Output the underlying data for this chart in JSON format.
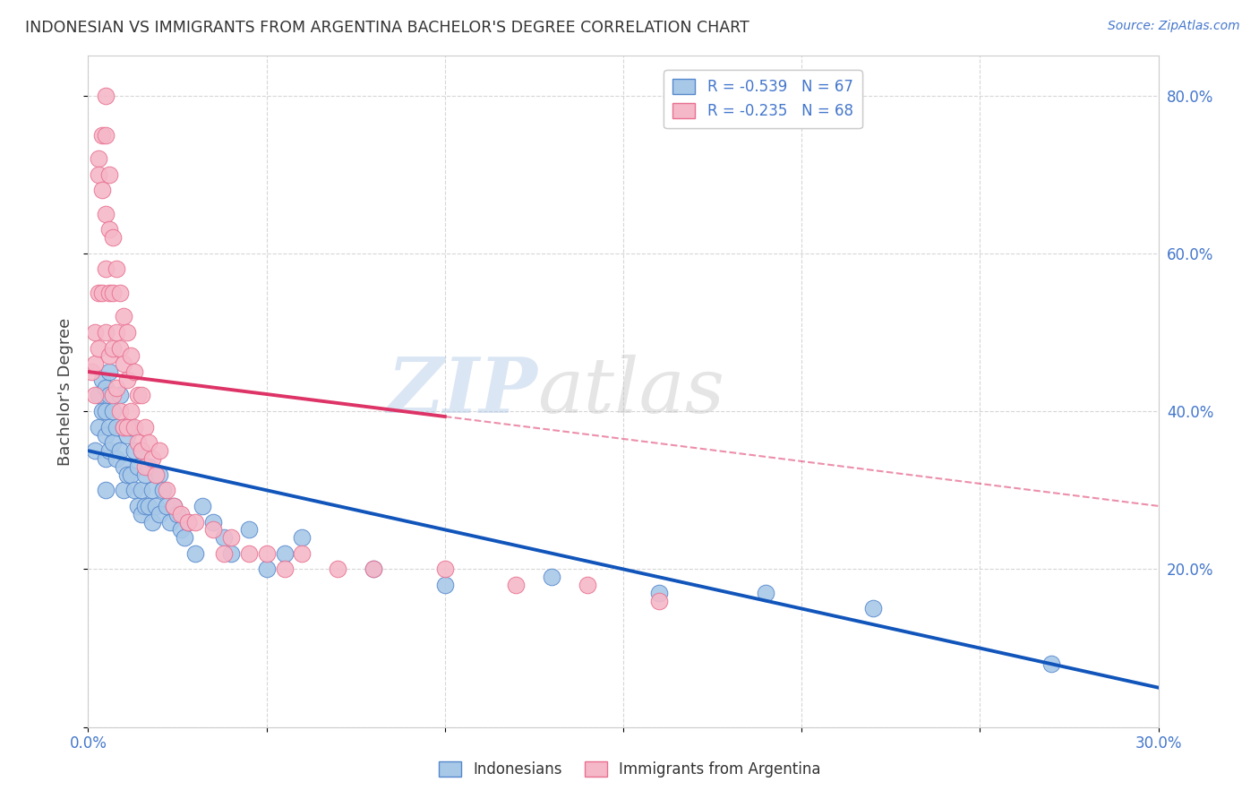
{
  "title": "INDONESIAN VS IMMIGRANTS FROM ARGENTINA BACHELOR'S DEGREE CORRELATION CHART",
  "source": "Source: ZipAtlas.com",
  "ylabel": "Bachelor's Degree",
  "watermark_zip": "ZIP",
  "watermark_atlas": "atlas",
  "xlim": [
    0.0,
    0.3
  ],
  "ylim": [
    0.0,
    0.85
  ],
  "legend_blue_label": "R = -0.539   N = 67",
  "legend_pink_label": "R = -0.235   N = 68",
  "legend_bottom_blue": "Indonesians",
  "legend_bottom_pink": "Immigrants from Argentina",
  "blue_fill": "#a8c8e8",
  "pink_fill": "#f5b8c8",
  "blue_edge": "#5588cc",
  "pink_edge": "#e87090",
  "blue_line": "#1155bb",
  "pink_line": "#dd3366",
  "grid_color": "#cccccc",
  "background_color": "#ffffff",
  "indonesians_x": [
    0.002,
    0.003,
    0.003,
    0.004,
    0.004,
    0.005,
    0.005,
    0.005,
    0.005,
    0.005,
    0.006,
    0.006,
    0.006,
    0.006,
    0.007,
    0.007,
    0.008,
    0.008,
    0.009,
    0.009,
    0.01,
    0.01,
    0.01,
    0.011,
    0.011,
    0.012,
    0.012,
    0.013,
    0.013,
    0.014,
    0.014,
    0.015,
    0.015,
    0.015,
    0.016,
    0.016,
    0.017,
    0.017,
    0.018,
    0.018,
    0.019,
    0.02,
    0.02,
    0.021,
    0.022,
    0.023,
    0.024,
    0.025,
    0.026,
    0.027,
    0.028,
    0.03,
    0.032,
    0.035,
    0.038,
    0.04,
    0.045,
    0.05,
    0.055,
    0.06,
    0.08,
    0.1,
    0.13,
    0.16,
    0.19,
    0.22,
    0.27
  ],
  "indonesians_y": [
    0.35,
    0.38,
    0.42,
    0.4,
    0.44,
    0.43,
    0.4,
    0.37,
    0.34,
    0.3,
    0.45,
    0.42,
    0.38,
    0.35,
    0.4,
    0.36,
    0.38,
    0.34,
    0.42,
    0.35,
    0.38,
    0.33,
    0.3,
    0.37,
    0.32,
    0.38,
    0.32,
    0.35,
    0.3,
    0.33,
    0.28,
    0.35,
    0.3,
    0.27,
    0.32,
    0.28,
    0.33,
    0.28,
    0.3,
    0.26,
    0.28,
    0.32,
    0.27,
    0.3,
    0.28,
    0.26,
    0.28,
    0.27,
    0.25,
    0.24,
    0.26,
    0.22,
    0.28,
    0.26,
    0.24,
    0.22,
    0.25,
    0.2,
    0.22,
    0.24,
    0.2,
    0.18,
    0.19,
    0.17,
    0.17,
    0.15,
    0.08
  ],
  "argentina_x": [
    0.001,
    0.002,
    0.002,
    0.002,
    0.003,
    0.003,
    0.003,
    0.003,
    0.004,
    0.004,
    0.004,
    0.005,
    0.005,
    0.005,
    0.005,
    0.005,
    0.006,
    0.006,
    0.006,
    0.006,
    0.007,
    0.007,
    0.007,
    0.007,
    0.008,
    0.008,
    0.008,
    0.009,
    0.009,
    0.009,
    0.01,
    0.01,
    0.01,
    0.011,
    0.011,
    0.011,
    0.012,
    0.012,
    0.013,
    0.013,
    0.014,
    0.014,
    0.015,
    0.015,
    0.016,
    0.016,
    0.017,
    0.018,
    0.019,
    0.02,
    0.022,
    0.024,
    0.026,
    0.028,
    0.03,
    0.035,
    0.038,
    0.04,
    0.045,
    0.05,
    0.055,
    0.06,
    0.07,
    0.08,
    0.1,
    0.12,
    0.14,
    0.16
  ],
  "argentina_y": [
    0.45,
    0.42,
    0.46,
    0.5,
    0.72,
    0.7,
    0.55,
    0.48,
    0.75,
    0.68,
    0.55,
    0.8,
    0.75,
    0.65,
    0.58,
    0.5,
    0.7,
    0.63,
    0.55,
    0.47,
    0.62,
    0.55,
    0.48,
    0.42,
    0.58,
    0.5,
    0.43,
    0.55,
    0.48,
    0.4,
    0.52,
    0.46,
    0.38,
    0.5,
    0.44,
    0.38,
    0.47,
    0.4,
    0.45,
    0.38,
    0.42,
    0.36,
    0.42,
    0.35,
    0.38,
    0.33,
    0.36,
    0.34,
    0.32,
    0.35,
    0.3,
    0.28,
    0.27,
    0.26,
    0.26,
    0.25,
    0.22,
    0.24,
    0.22,
    0.22,
    0.2,
    0.22,
    0.2,
    0.2,
    0.2,
    0.18,
    0.18,
    0.16
  ]
}
